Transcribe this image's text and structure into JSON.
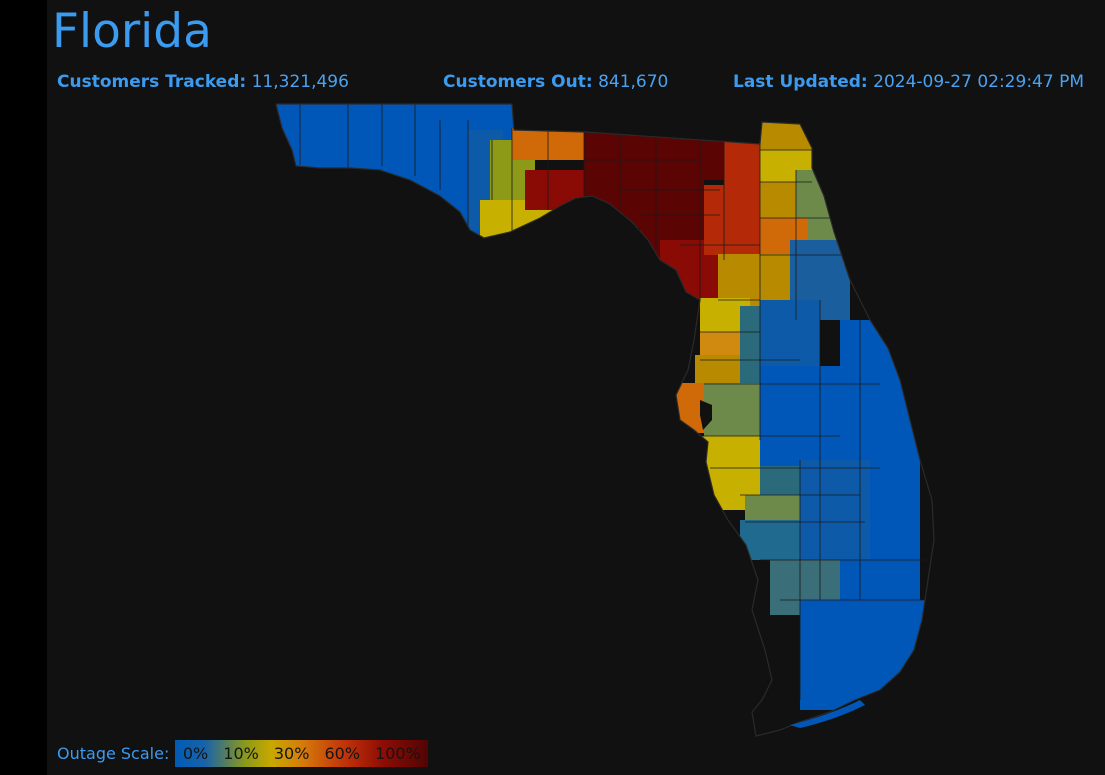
{
  "header": {
    "title": "Florida",
    "tracked_label": "Customers Tracked:",
    "tracked_value": "11,321,496",
    "out_label": "Customers Out:",
    "out_value": "841,670",
    "updated_label": "Last Updated:",
    "updated_value": "2024-09-27 02:29:47 PM"
  },
  "legend": {
    "label": "Outage Scale:",
    "ticks": [
      "0%",
      "10%",
      "30%",
      "60%",
      "100%"
    ]
  },
  "colors": {
    "accent": "#3b9bf0",
    "background": "#111111",
    "outage_0": "#0057b8",
    "outage_low": "#1a5e9e",
    "outage_teal": "#2a6a7a",
    "outage_green": "#6e8a4a",
    "outage_olive": "#8c9a18",
    "outage_10": "#c8b000",
    "outage_20": "#b88a00",
    "outage_30": "#d06a08",
    "outage_50": "#b42a08",
    "outage_60": "#8a0a06",
    "outage_100": "#5a0404"
  }
}
